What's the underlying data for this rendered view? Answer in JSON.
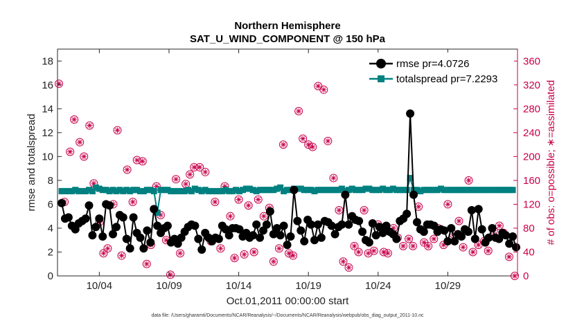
{
  "chart_data": {
    "type": "line",
    "title_line1": "Northern Hemisphere",
    "title_line2": "SAT_U_WIND_COMPONENT @ 150 hPa",
    "ylabel": "rmse and totalspread",
    "ylabel_right": "# of obs: o=possible; ∗=assimilated",
    "xlabel": "Oct.01,2011 00:00:00 start",
    "footnote": "data file: /Users/gharamti/Documents/NCAR/Reanalysis/~/Documents/NCAR/Reanalysis/webpub/obs_diag_output_2011-10.nc",
    "xlim": [
      1,
      34
    ],
    "ylim": [
      0,
      19
    ],
    "ylim_right": [
      0,
      380
    ],
    "x_ticks": [
      4,
      9,
      14,
      19,
      24,
      29
    ],
    "x_tick_labels": [
      "10/04",
      "10/09",
      "10/14",
      "10/19",
      "10/24",
      "10/29"
    ],
    "y_ticks": [
      0,
      2,
      4,
      6,
      8,
      10,
      12,
      14,
      16,
      18
    ],
    "y_tick_labels": [
      "0",
      "2",
      "4",
      "6",
      "8",
      "10",
      "12",
      "14",
      "16",
      "18"
    ],
    "y_right_ticks": [
      0,
      40,
      80,
      120,
      160,
      200,
      240,
      280,
      320,
      360
    ],
    "y_right_tick_labels": [
      "0",
      "40",
      "80",
      "120",
      "160",
      "200",
      "240",
      "280",
      "320",
      "360"
    ],
    "colors": {
      "rmse": "#000000",
      "spread": "#008080",
      "obs": "#c8004a"
    },
    "series": [
      {
        "name": "rmse pr=4.0726",
        "values": [
          6.1,
          4.8,
          4.9,
          4.2,
          3.9,
          4.4,
          4.6,
          4.8,
          5.9,
          3.4,
          4.1,
          4.8,
          3.3,
          6.0,
          5.9,
          3.5,
          4.1,
          5.1,
          4.9,
          3.1,
          2.3,
          4.9,
          3.6,
          3.2,
          2.3,
          3.8,
          2.8,
          5.6,
          4.2,
          3.6,
          4.0,
          4.2,
          2.8,
          3.1,
          2.7,
          3.2,
          3.7,
          4.1,
          4.3,
          4.2,
          3.1,
          2.2,
          3.6,
          3.2,
          2.9,
          3.2,
          3.1,
          4.2,
          3.9,
          3.4,
          4.0,
          4.0,
          3.9,
          3.3,
          3.6,
          3.2,
          3.4,
          4.3,
          3.2,
          3.8,
          4.3,
          5.4,
          3.5,
          4.0,
          3.4,
          4.2,
          2.6,
          3.3,
          7.2,
          4.6,
          3.8,
          2.9,
          4.7,
          4.3,
          3.0,
          4.3,
          3.2,
          4.6,
          4.5,
          4.2,
          3.5,
          4.1,
          4.3,
          6.8,
          4.3,
          5.0,
          4.7,
          4.6,
          3.7,
          3.0,
          2.8,
          4.4,
          3.4,
          4.1,
          3.6,
          4.2,
          3.7,
          3.5,
          3.1,
          4.6,
          4.8,
          5.2,
          13.6,
          6.8,
          4.5,
          3.9,
          3.7,
          4.3,
          4.3,
          4.2,
          3.7,
          3.9,
          3.8,
          2.9,
          4.0,
          2.9,
          3.5,
          3.3,
          3.9,
          3.7,
          5.5,
          3.1,
          5.6,
          3.9,
          2.8,
          3.2,
          4.0,
          3.2,
          3.1,
          3.6,
          3.4,
          2.7,
          3.3,
          2.4
        ],
        "marker": "circle"
      },
      {
        "name": "totalspread pr=7.2293",
        "values": [
          7.1,
          7.1,
          7.1,
          7.1,
          7.2,
          7.1,
          7.1,
          7.1,
          7.2,
          7.1,
          7.4,
          7.3,
          7.2,
          7.2,
          7.1,
          7.2,
          7.1,
          7.2,
          7.1,
          7.2,
          7.1,
          7.2,
          7.2,
          7.1,
          7.1,
          7.2,
          7.2,
          7.1,
          5.3,
          7.2,
          7.2,
          7.2,
          7.1,
          7.1,
          7.1,
          7.1,
          7.1,
          7.2,
          7.1,
          7.3,
          7.2,
          7.1,
          7.2,
          7.1,
          7.1,
          7.1,
          7.1,
          7.1,
          7.2,
          7.1,
          7.1,
          7.2,
          7.1,
          7.2,
          7.3,
          7.3,
          7.2,
          7.1,
          7.2,
          7.2,
          7.2,
          7.2,
          7.2,
          7.3,
          7.4,
          7.1,
          7.2,
          7.2,
          7.3,
          7.3,
          7.3,
          7.2,
          7.2,
          7.2,
          7.1,
          7.2,
          7.2,
          7.2,
          7.2,
          7.2,
          7.2,
          7.2,
          7.3,
          7.1,
          7.2,
          7.3,
          7.2,
          7.2,
          7.2,
          7.3,
          7.3,
          7.2,
          7.2,
          7.2,
          7.3,
          7.2,
          7.2,
          7.3,
          7.2,
          7.2,
          7.2,
          7.2,
          8.2,
          7.2,
          7.2,
          7.1,
          7.2,
          7.2,
          7.2,
          7.2,
          7.2,
          7.3,
          7.2,
          7.2,
          7.2,
          7.2,
          7.2,
          7.2,
          7.2,
          7.2,
          7.2,
          7.2,
          7.2,
          7.2,
          7.2,
          7.2,
          7.2,
          7.2,
          7.2,
          7.2,
          7.2,
          7.2,
          7.2
        ],
        "marker": "square"
      }
    ],
    "obs_counts": {
      "x": [
        1.1,
        1.5,
        1.9,
        2.2,
        2.6,
        2.9,
        3.3,
        3.6,
        4.0,
        4.3,
        4.6,
        5.0,
        5.3,
        5.6,
        6.0,
        6.4,
        6.7,
        7.1,
        7.4,
        7.7,
        8.1,
        8.4,
        8.8,
        9.1,
        9.5,
        9.8,
        10.2,
        10.5,
        10.8,
        11.2,
        11.6,
        12.0,
        12.3,
        12.7,
        13.0,
        13.4,
        13.7,
        14.0,
        14.4,
        14.7,
        15.1,
        15.4,
        15.8,
        16.2,
        16.5,
        16.9,
        17.2,
        17.6,
        17.9,
        18.3,
        18.6,
        19.0,
        19.3,
        19.7,
        20.1,
        20.4,
        20.8,
        21.2,
        21.5,
        21.9,
        22.3,
        22.6,
        23.0,
        23.3,
        23.7,
        24.0,
        24.4,
        24.7,
        25.1,
        25.4,
        25.8,
        26.2,
        26.5,
        26.9,
        27.3,
        27.6,
        28.0,
        28.3,
        28.7,
        29.0,
        29.4,
        29.8,
        30.1,
        30.5,
        30.8,
        31.2,
        31.6,
        31.9,
        32.3,
        32.7,
        33.0,
        33.4,
        33.8
      ],
      "possible": [
        322,
        124,
        208,
        262,
        224,
        200,
        252,
        155,
        90,
        38,
        46,
        120,
        244,
        34,
        178,
        124,
        194,
        192,
        20,
        52,
        150,
        102,
        60,
        2,
        162,
        38,
        154,
        170,
        182,
        182,
        174,
        58,
        124,
        46,
        150,
        100,
        30,
        128,
        36,
        118,
        40,
        128,
        100,
        114,
        24,
        46,
        220,
        38,
        34,
        276,
        230,
        220,
        216,
        318,
        312,
        226,
        164,
        110,
        24,
        14,
        50,
        40,
        110,
        38,
        42,
        86,
        40,
        38,
        80,
        64,
        50,
        62,
        50,
        116,
        56,
        50,
        62,
        80,
        52,
        120,
        70,
        92,
        48,
        160,
        40,
        52,
        58,
        42,
        76,
        84,
        72,
        32,
        0
      ],
      "assimilated": [
        322,
        124,
        208,
        262,
        224,
        200,
        252,
        155,
        90,
        38,
        46,
        120,
        244,
        34,
        178,
        124,
        194,
        192,
        20,
        52,
        150,
        102,
        60,
        2,
        162,
        38,
        154,
        170,
        182,
        182,
        174,
        58,
        124,
        46,
        150,
        100,
        30,
        128,
        36,
        118,
        40,
        128,
        100,
        114,
        24,
        46,
        220,
        38,
        34,
        276,
        230,
        220,
        216,
        318,
        312,
        226,
        164,
        110,
        24,
        14,
        50,
        40,
        110,
        38,
        42,
        86,
        40,
        38,
        80,
        64,
        50,
        62,
        50,
        116,
        56,
        50,
        62,
        80,
        52,
        120,
        70,
        92,
        48,
        160,
        40,
        52,
        58,
        42,
        76,
        84,
        72,
        32,
        0
      ]
    },
    "legend": {
      "location": "top-right",
      "entries": [
        "rmse pr=4.0726",
        "totalspread pr=7.2293"
      ]
    }
  }
}
